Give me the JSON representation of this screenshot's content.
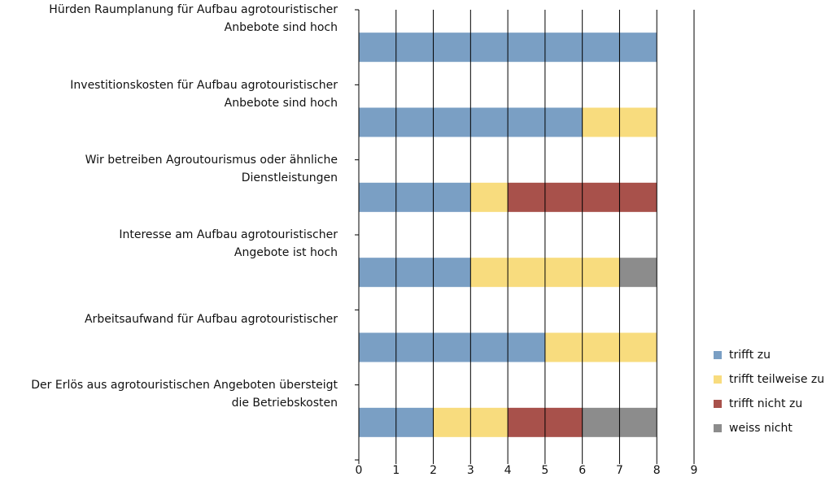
{
  "chart_data": {
    "type": "stacked_barh",
    "categories": [
      "Hürden Raumplanung für Aufbau agrotouristischer\nAnbebote sind hoch",
      "Investitionskosten für Aufbau agrotouristischer\nAnbebote sind hoch",
      "Wir betreiben Agroutourismus oder ähnliche\nDienstleistungen",
      "Interesse am Aufbau agrotouristischer\nAngebote ist hoch",
      "Arbeitsaufwand für Aufbau agrotouristischer",
      "Der Erlös aus agrotouristischen Angeboten übersteigt\ndie Betriebskosten"
    ],
    "series": [
      {
        "name": "trifft zu",
        "color": "#7a9fc4",
        "values": [
          8,
          6,
          3,
          3,
          5,
          2
        ]
      },
      {
        "name": "trifft teilweise zu",
        "color": "#f8dc7e",
        "values": [
          0,
          2,
          1,
          4,
          3,
          2
        ]
      },
      {
        "name": "trifft nicht zu",
        "color": "#a8514b",
        "values": [
          0,
          0,
          4,
          0,
          0,
          2
        ]
      },
      {
        "name": "weiss nicht",
        "color": "#8c8c8c",
        "values": [
          0,
          0,
          0,
          1,
          0,
          2
        ]
      }
    ],
    "xlim": [
      0,
      9
    ],
    "xticks": [
      0,
      1,
      2,
      3,
      4,
      5,
      6,
      7,
      8,
      9
    ],
    "grid": true,
    "legend": "right"
  }
}
